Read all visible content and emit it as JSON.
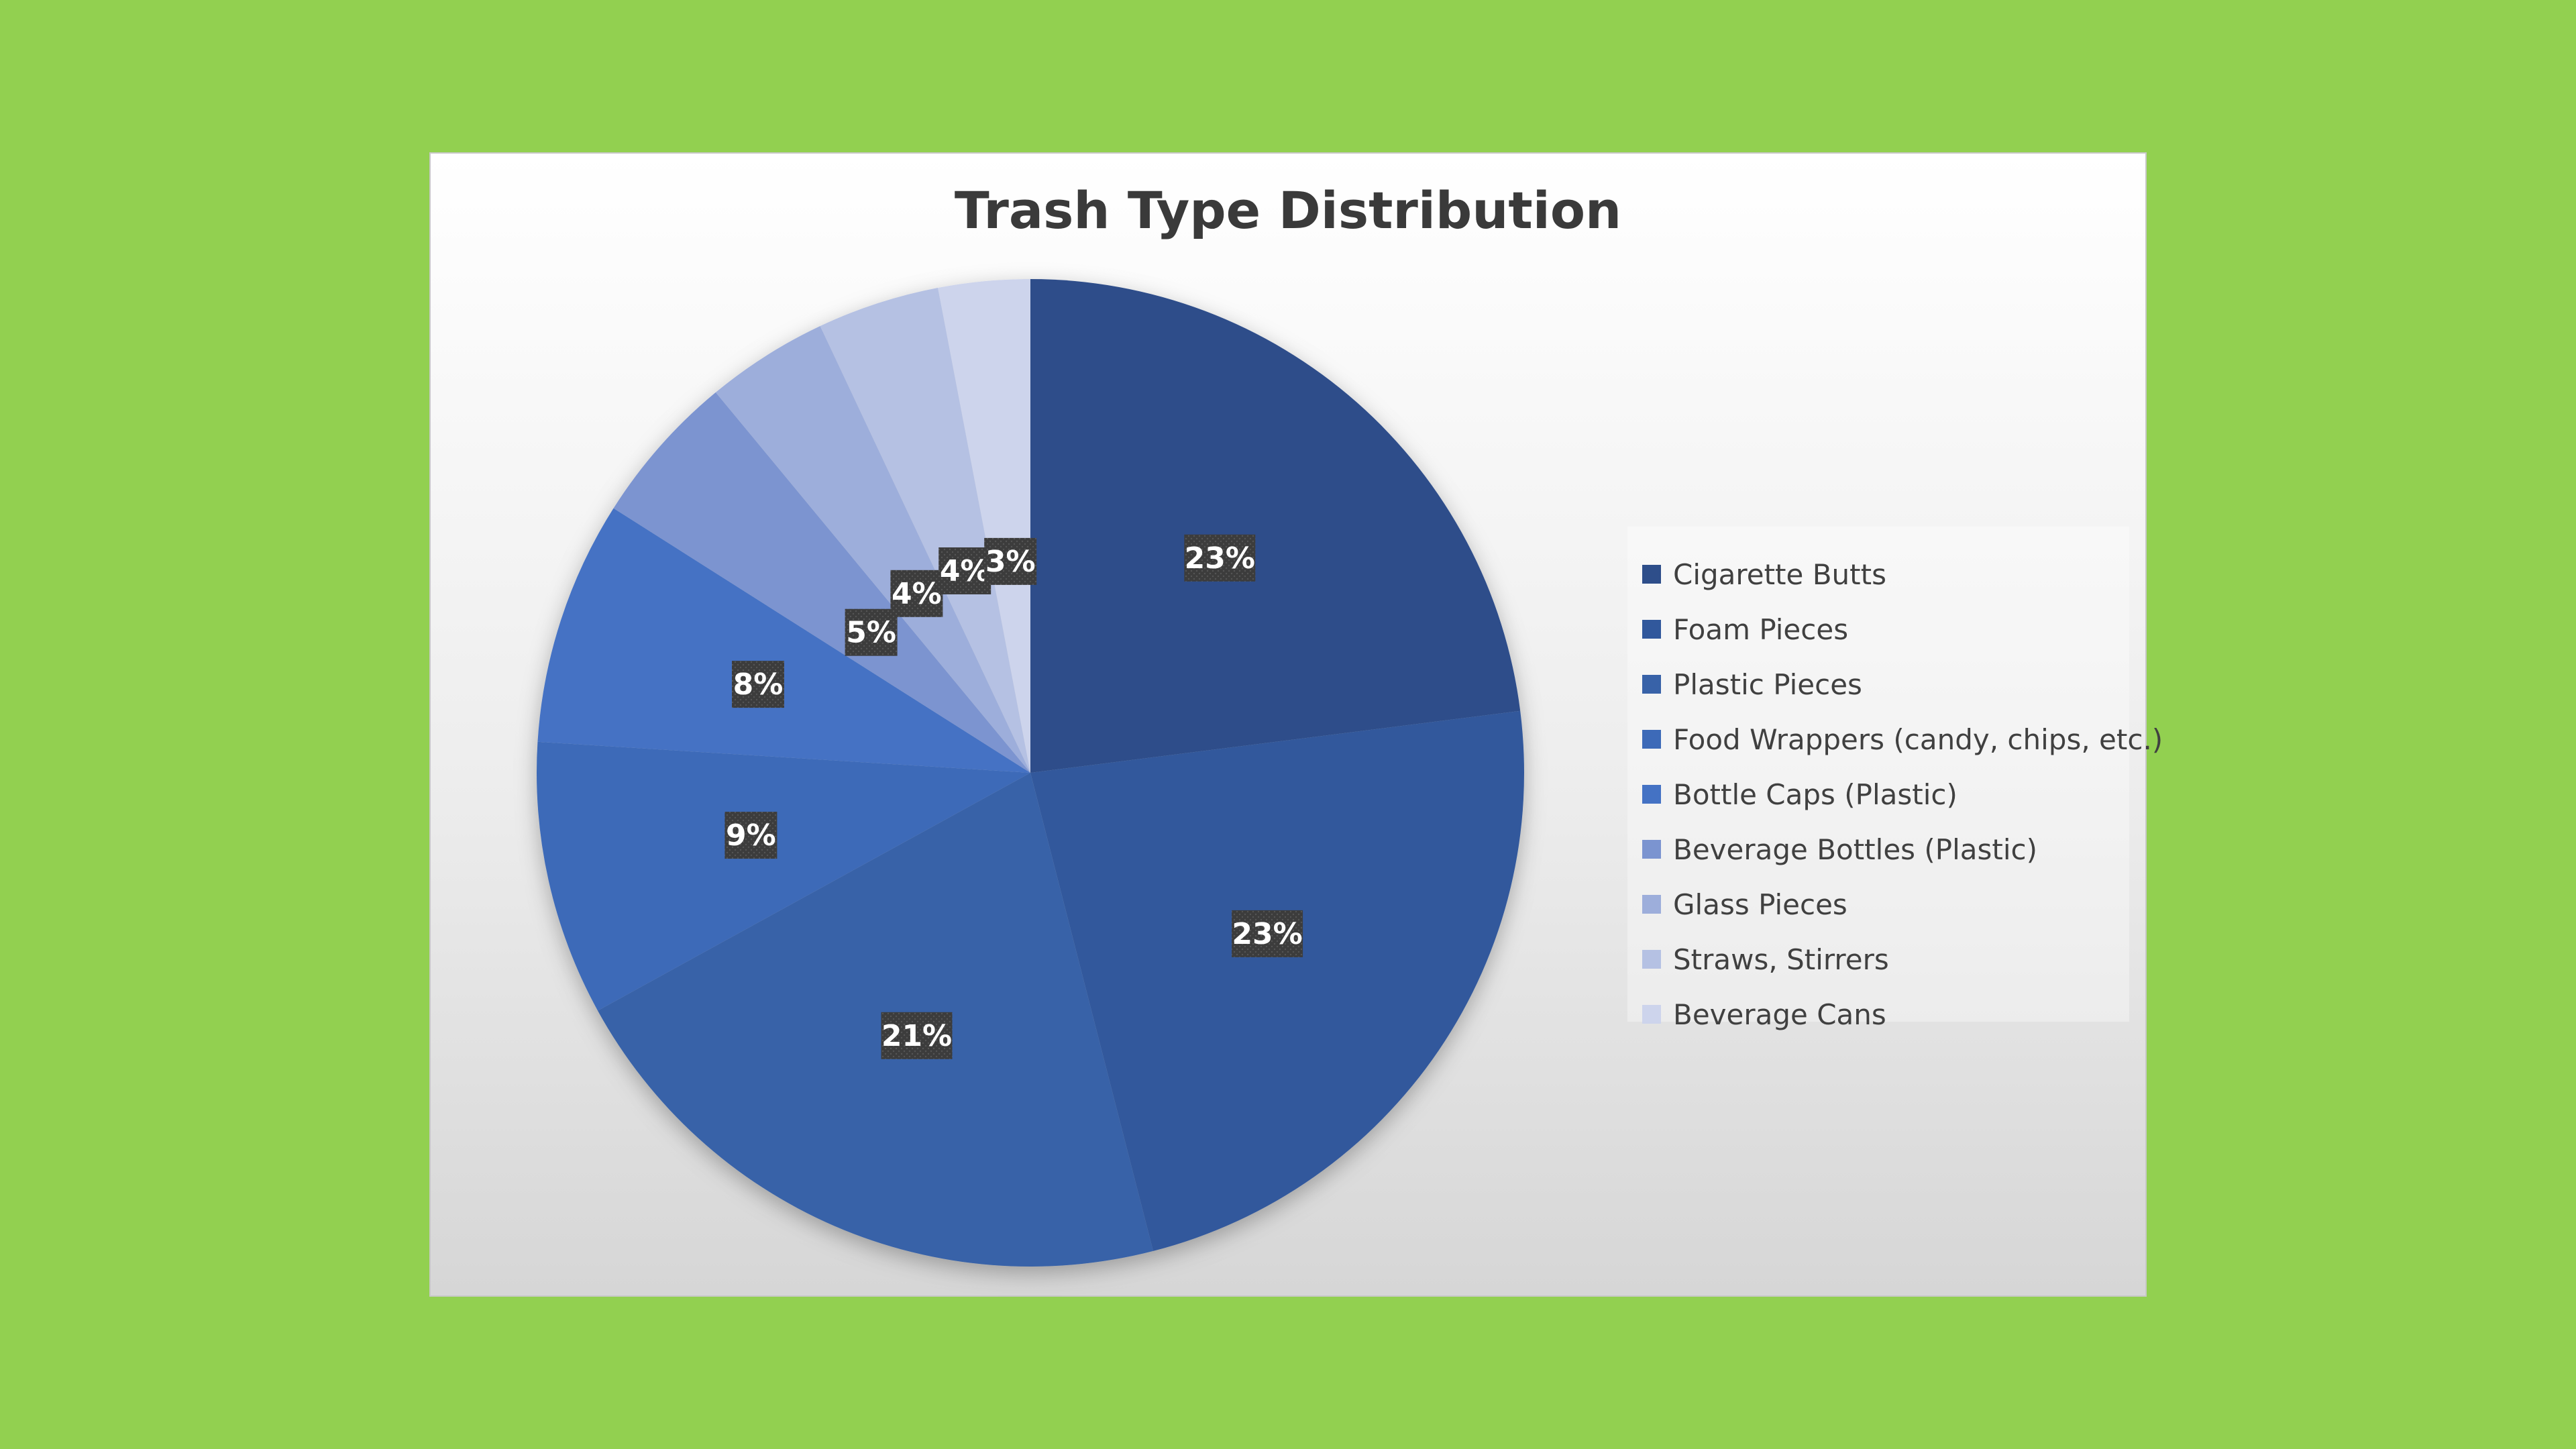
{
  "chart_data": {
    "type": "pie",
    "title": "Trash Type Distribution",
    "categories": [
      "Cigarette Butts",
      "Foam Pieces",
      "Plastic Pieces",
      "Food Wrappers (candy, chips, etc.)",
      "Bottle Caps (Plastic)",
      "Beverage Bottles (Plastic)",
      "Glass Pieces",
      "Straws, Stirrers",
      "Beverage Cans"
    ],
    "values": [
      23,
      23,
      21,
      9,
      8,
      5,
      4,
      4,
      3
    ],
    "data_labels": [
      "23%",
      "23%",
      "21%",
      "9%",
      "8%",
      "5%",
      "4%",
      "4%",
      "3%"
    ],
    "colors": [
      "#2e4e8a",
      "#31589c",
      "#3862a8",
      "#3d6ab8",
      "#4472c4",
      "#7b94d0",
      "#9daedb",
      "#b5c1e3",
      "#cdd4ec"
    ],
    "legend_position": "right",
    "data_label_style": {
      "background": "#3c3c3c",
      "color": "#ffffff"
    }
  }
}
